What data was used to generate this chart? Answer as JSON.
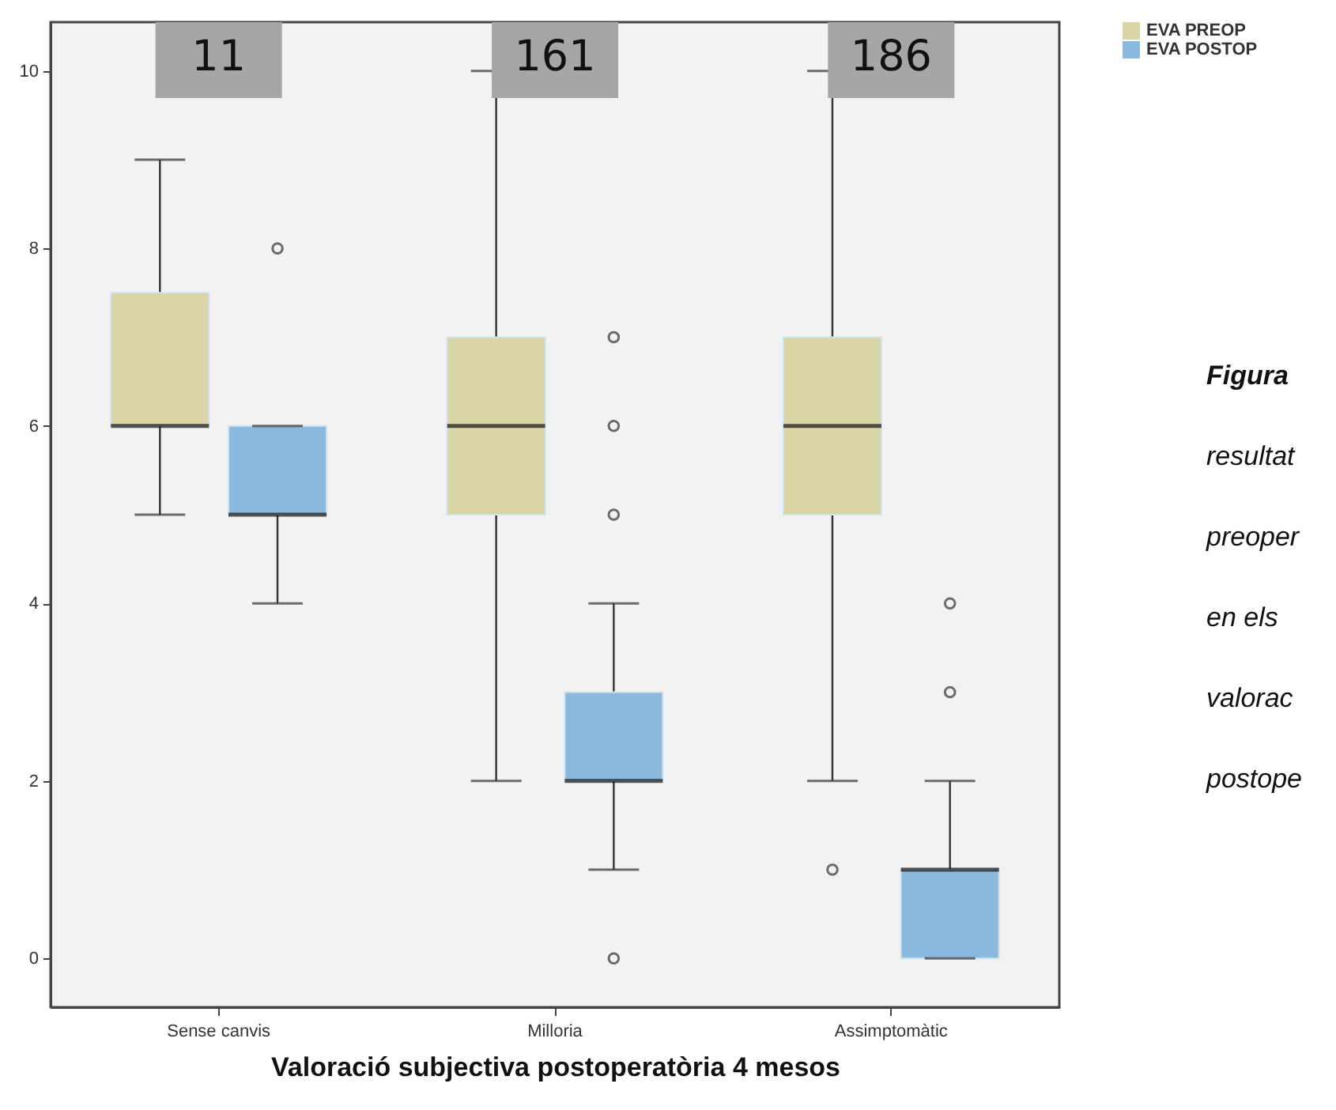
{
  "chart_data": {
    "type": "box",
    "xlabel": "Valoració subjectiva postoperatòria 4 mesos",
    "categories": [
      "Sense canvis",
      "Milloria",
      "Assimptomàtic"
    ],
    "series": [
      {
        "name": "EVA PREOP",
        "color": "#d9d5a7",
        "boxes": [
          {
            "low": 5,
            "q1": 6,
            "median": 6,
            "q3": 7.5,
            "high": 9
          },
          {
            "low": 2,
            "q1": 5,
            "median": 6,
            "q3": 7,
            "high": 10
          },
          {
            "low": 2,
            "q1": 5,
            "median": 6,
            "q3": 7,
            "high": 10,
            "outliers": [
              1
            ]
          }
        ]
      },
      {
        "name": "EVA POSTOP",
        "color": "#8bb8dd",
        "boxes": [
          {
            "low": 4,
            "q1": 5,
            "median": 5,
            "q3": 6,
            "high": 6,
            "outliers": [
              8
            ]
          },
          {
            "low": 1,
            "q1": 2,
            "median": 2,
            "q3": 3,
            "high": 4,
            "outliers": [
              7,
              6,
              5,
              0
            ]
          },
          {
            "low": 0,
            "q1": 0,
            "median": 1,
            "q3": 1,
            "high": 2,
            "outliers": [
              4,
              3
            ]
          }
        ]
      }
    ],
    "ylim": [
      -0.55,
      10.55
    ],
    "yticks": [
      0,
      2,
      4,
      6,
      8,
      10
    ],
    "legend": "top right",
    "annotations": [
      "11",
      "161",
      "186",
      "Figura",
      "resultat",
      "preoper",
      "en els",
      "valorac",
      "postope"
    ]
  }
}
